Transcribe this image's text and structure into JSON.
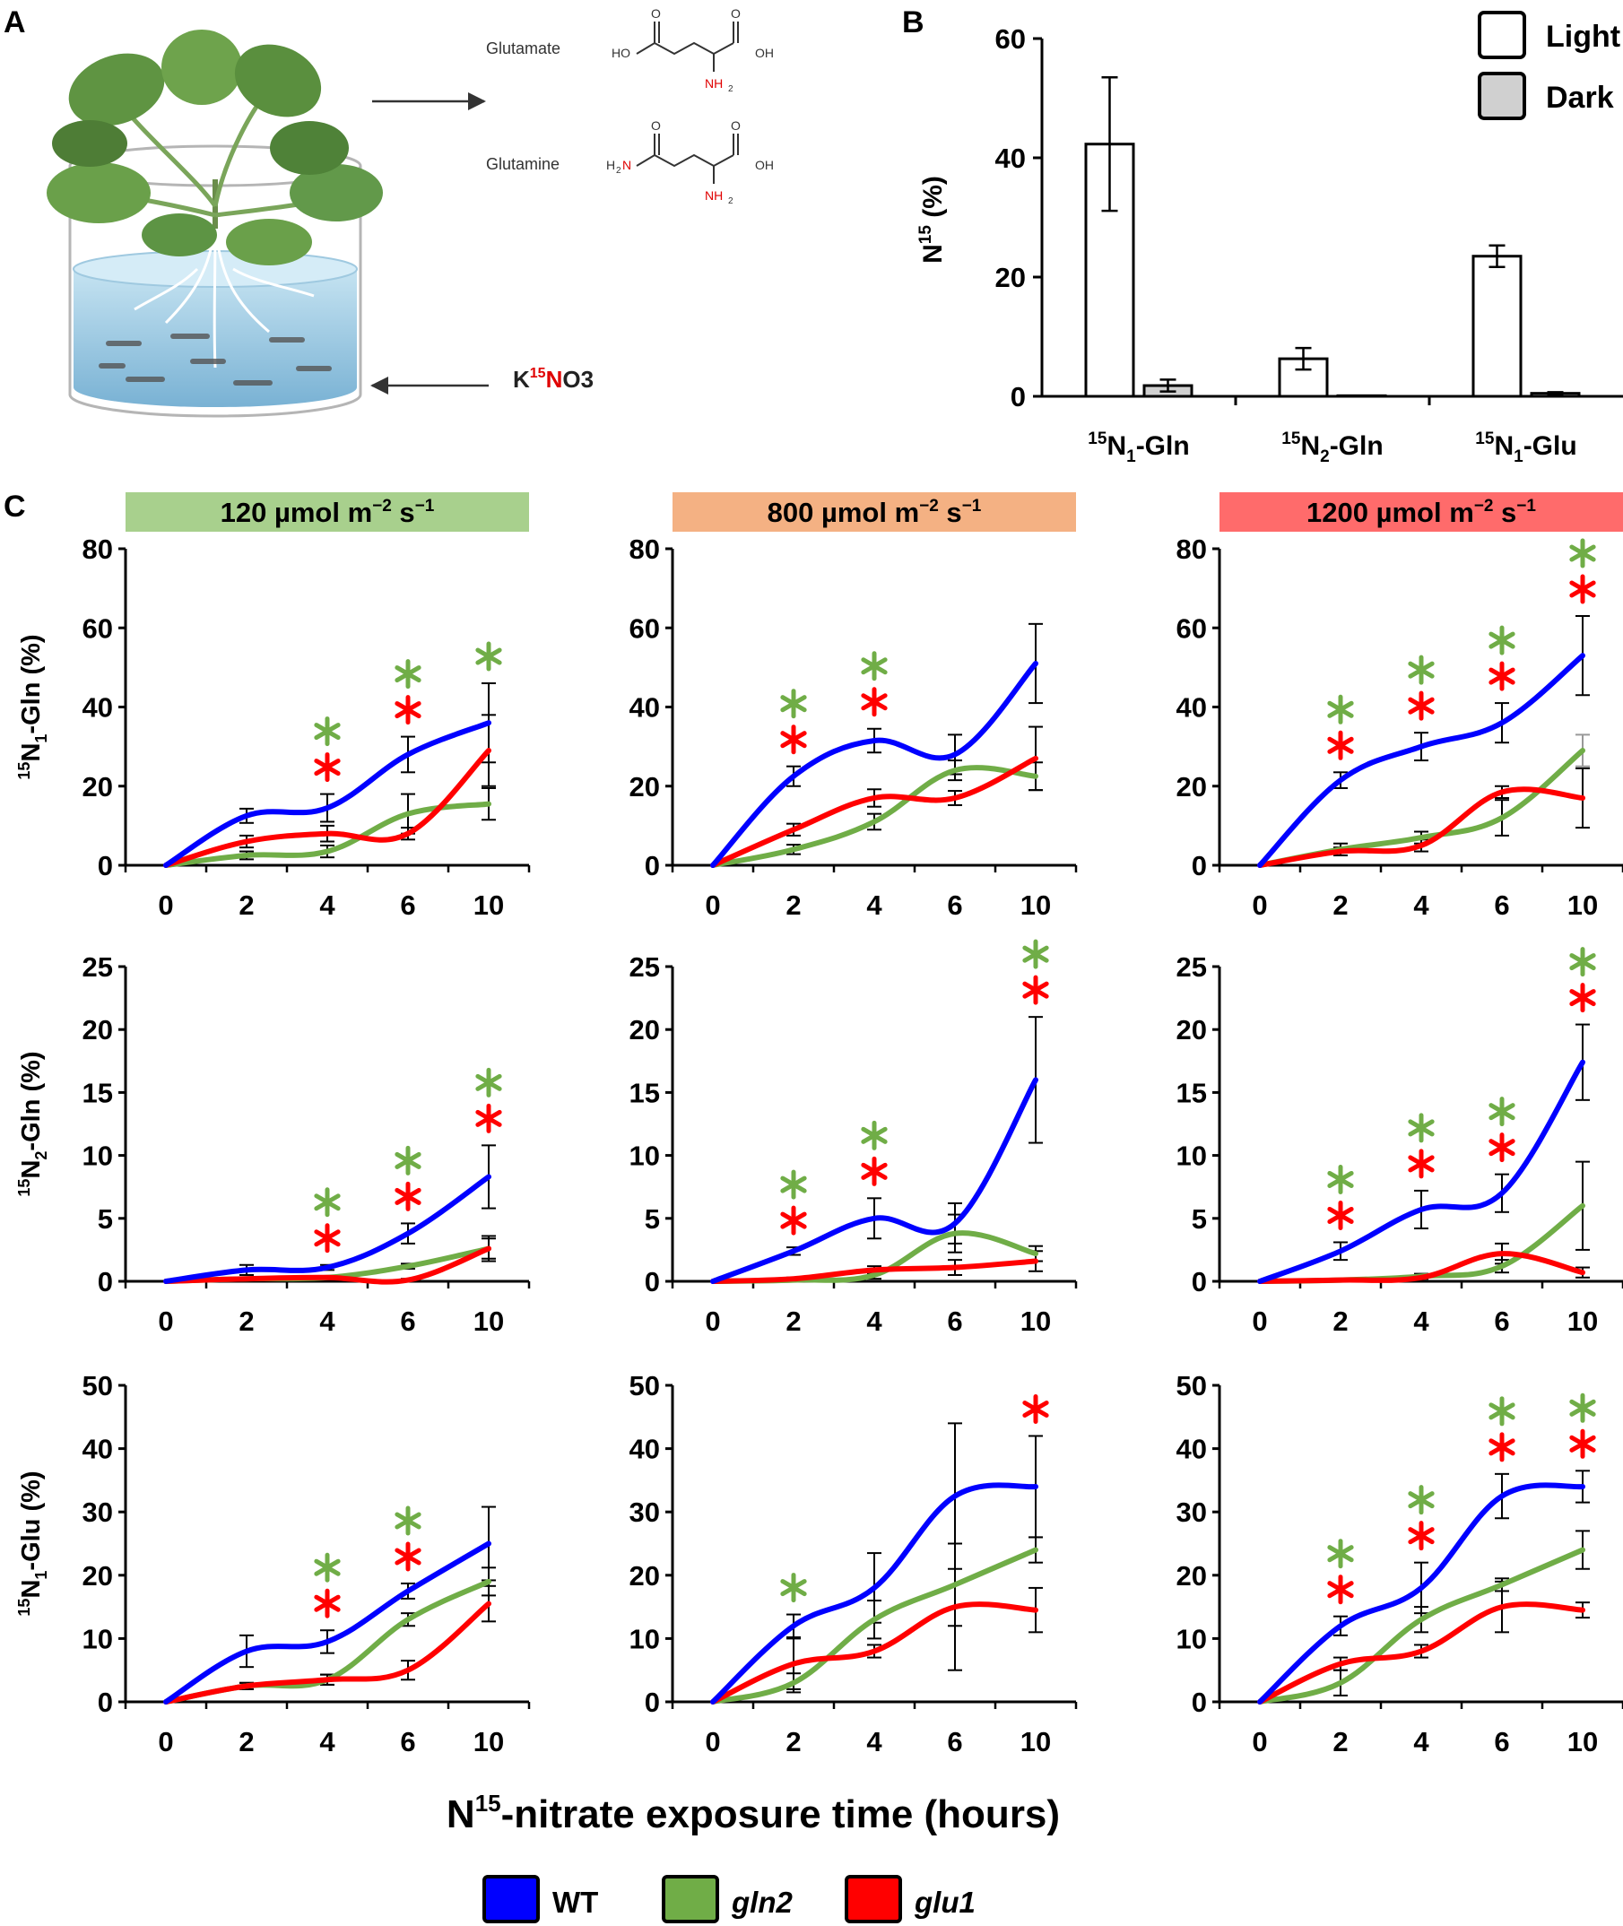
{
  "panel_letters": {
    "a": "A",
    "b": "B",
    "c": "C"
  },
  "panel_a": {
    "compounds": [
      "Glutamate",
      "Glutamine"
    ],
    "glutamate_atoms": {
      "ho": "HO",
      "oh": "OH",
      "o1": "O",
      "o2": "O",
      "n": "NH",
      "sub": "2"
    },
    "glutamine_atoms": {
      "h2n": "H",
      "h2n_sub": "2",
      "h2n_n": "N",
      "oh": "OH",
      "o1": "O",
      "o2": "O",
      "n": "NH",
      "sub": "2"
    },
    "nitrate_label": {
      "k": "K",
      "sup": "15",
      "n": "N",
      "rest": "O3"
    }
  },
  "chart_data": [
    {
      "id": "B",
      "type": "bar",
      "categories": [
        "¹⁵N₁-Gln",
        "¹⁵N₂-Gln",
        "¹⁵N₁-Glu"
      ],
      "category_parts": [
        {
          "sup": "15",
          "main": "N",
          "sub": "1",
          "rest": "-Gln"
        },
        {
          "sup": "15",
          "main": "N",
          "sub": "2",
          "rest": "-Gln"
        },
        {
          "sup": "15",
          "main": "N",
          "sub": "1",
          "rest": "-Glu"
        }
      ],
      "series": [
        {
          "name": "Light",
          "values": [
            42.3,
            6.3,
            23.5
          ],
          "errors": [
            11.2,
            1.8,
            1.8
          ],
          "color": "#ffffff"
        },
        {
          "name": "Dark",
          "values": [
            1.8,
            0.1,
            0.5
          ],
          "errors": [
            1.0,
            0.0,
            0.2
          ],
          "color": "#d0d0d0"
        }
      ],
      "ylabel": {
        "main": "N",
        "sup": "15",
        "rest": " (%)"
      },
      "ylim": [
        0,
        60
      ],
      "yticks": [
        0,
        20,
        40,
        60
      ],
      "legend_position": "top-right"
    },
    {
      "id": "C",
      "type": "line",
      "x": [
        0,
        2,
        4,
        6,
        10
      ],
      "x_tick_labels": [
        "0",
        "2",
        "4",
        "6",
        "10"
      ],
      "xlabel": {
        "main": "N",
        "sup": "15",
        "rest": "-nitrate exposure time (hours)"
      },
      "light_conditions": [
        {
          "label_main": "120 µmol m",
          "exp1": "−2",
          "mid": " s",
          "exp2": "−1",
          "color": "#a8d08d"
        },
        {
          "label_main": "800 µmol m",
          "exp1": "−2",
          "mid": " s",
          "exp2": "−1",
          "color": "#f4b183"
        },
        {
          "label_main": "1200 µmol m",
          "exp1": "−2",
          "mid": " s",
          "exp2": "−1",
          "color": "#ff6b6b"
        }
      ],
      "legend": [
        {
          "name": "WT",
          "color": "#0000ff",
          "italic": false
        },
        {
          "name": "gln2",
          "color": "#70ad47",
          "italic": true
        },
        {
          "name": "glu1",
          "color": "#ff0000",
          "italic": true
        }
      ],
      "rows": [
        {
          "ylabel": {
            "sup": "15",
            "main": "N",
            "sub": "1",
            "rest": "-Gln (%)"
          },
          "ylim": [
            0,
            80
          ],
          "yticks": [
            0,
            20,
            40,
            60,
            80
          ],
          "panels": [
            {
              "series": [
                {
                  "name": "WT",
                  "values": [
                    0,
                    12.5,
                    14.5,
                    28,
                    36
                  ],
                  "errors": [
                    0,
                    1.8,
                    3.5,
                    4.5,
                    10
                  ]
                },
                {
                  "name": "gln2",
                  "values": [
                    0,
                    2.5,
                    3.5,
                    13,
                    15.5
                  ],
                  "errors": [
                    0,
                    1,
                    1.5,
                    5,
                    4
                  ]
                },
                {
                  "name": "glu1",
                  "values": [
                    0,
                    6,
                    8,
                    8,
                    29
                  ],
                  "errors": [
                    0,
                    1.5,
                    2,
                    1.5,
                    9
                  ]
                }
              ],
              "stars": [
                {
                  "x": 4,
                  "green": true,
                  "red": true
                },
                {
                  "x": 6,
                  "green": true,
                  "red": true
                },
                {
                  "x": 10,
                  "green": true,
                  "red": false
                }
              ]
            },
            {
              "series": [
                {
                  "name": "WT",
                  "values": [
                    0,
                    22.5,
                    31.5,
                    28,
                    51
                  ],
                  "errors": [
                    0,
                    2.5,
                    3,
                    5,
                    10
                  ]
                },
                {
                  "name": "gln2",
                  "values": [
                    0,
                    4,
                    11,
                    24,
                    22.5
                  ],
                  "errors": [
                    0,
                    1.2,
                    2,
                    2.5,
                    3.5
                  ]
                },
                {
                  "name": "glu1",
                  "values": [
                    0,
                    9,
                    17,
                    17,
                    27
                  ],
                  "errors": [
                    0,
                    1.5,
                    2.2,
                    1.8,
                    8
                  ]
                }
              ],
              "stars": [
                {
                  "x": 2,
                  "green": true,
                  "red": true
                },
                {
                  "x": 4,
                  "green": true,
                  "red": true
                }
              ]
            },
            {
              "series": [
                {
                  "name": "WT",
                  "values": [
                    0,
                    21.5,
                    30,
                    36,
                    53
                  ],
                  "errors": [
                    0,
                    2,
                    3.5,
                    5,
                    10
                  ]
                },
                {
                  "name": "gln2",
                  "values": [
                    0,
                    4,
                    7,
                    12,
                    29
                  ],
                  "errors": [
                    0,
                    1.5,
                    1.5,
                    4.5,
                    4
                  ]
                },
                {
                  "name": "glu1",
                  "values": [
                    0,
                    3.5,
                    5,
                    18.5,
                    17
                  ],
                  "errors": [
                    0,
                    1,
                    1.5,
                    1.5,
                    7.5
                  ]
                }
              ],
              "stars": [
                {
                  "x": 2,
                  "green": true,
                  "red": true
                },
                {
                  "x": 4,
                  "green": true,
                  "red": true
                },
                {
                  "x": 6,
                  "green": true,
                  "red": true
                },
                {
                  "x": 10,
                  "green": true,
                  "red": true
                }
              ]
            }
          ]
        },
        {
          "ylabel": {
            "sup": "15",
            "main": "N",
            "sub": "2",
            "rest": "-Gln (%)"
          },
          "ylim": [
            0,
            25
          ],
          "yticks": [
            0,
            5,
            10,
            15,
            20,
            25
          ],
          "panels": [
            {
              "series": [
                {
                  "name": "WT",
                  "values": [
                    0,
                    0.9,
                    1.1,
                    3.8,
                    8.3
                  ],
                  "errors": [
                    0,
                    0.4,
                    0.2,
                    0.8,
                    2.5
                  ]
                },
                {
                  "name": "gln2",
                  "values": [
                    0,
                    0.2,
                    0.3,
                    1.2,
                    2.6
                  ],
                  "errors": [
                    0,
                    0.1,
                    0.1,
                    0.2,
                    1
                  ]
                },
                {
                  "name": "glu1",
                  "values": [
                    0,
                    0.2,
                    0.3,
                    0.1,
                    2.6
                  ],
                  "errors": [
                    0,
                    0.1,
                    0.1,
                    0.1,
                    0.8
                  ]
                }
              ],
              "stars": [
                {
                  "x": 4,
                  "green": true,
                  "red": true
                },
                {
                  "x": 6,
                  "green": true,
                  "red": true
                },
                {
                  "x": 10,
                  "green": true,
                  "red": true
                }
              ]
            },
            {
              "series": [
                {
                  "name": "WT",
                  "values": [
                    0,
                    2.4,
                    5,
                    4.6,
                    16
                  ],
                  "errors": [
                    0,
                    0.3,
                    1.6,
                    1.6,
                    5
                  ]
                },
                {
                  "name": "gln2",
                  "values": [
                    0,
                    0.1,
                    0.5,
                    3.8,
                    2.2
                  ],
                  "errors": [
                    0,
                    0.1,
                    0.3,
                    1.5,
                    0.6
                  ]
                },
                {
                  "name": "glu1",
                  "values": [
                    0,
                    0.2,
                    0.9,
                    1.1,
                    1.6
                  ],
                  "errors": [
                    0,
                    0.1,
                    0.3,
                    0.6,
                    0.8
                  ]
                }
              ],
              "stars": [
                {
                  "x": 2,
                  "green": true,
                  "red": true
                },
                {
                  "x": 4,
                  "green": true,
                  "red": true
                },
                {
                  "x": 10,
                  "green": true,
                  "red": true
                }
              ]
            },
            {
              "series": [
                {
                  "name": "WT",
                  "values": [
                    0,
                    2.4,
                    5.7,
                    7,
                    17.4
                  ],
                  "errors": [
                    0,
                    0.7,
                    1.5,
                    1.5,
                    3
                  ]
                },
                {
                  "name": "gln2",
                  "values": [
                    0,
                    0.1,
                    0.4,
                    1.2,
                    6
                  ],
                  "errors": [
                    0,
                    0.1,
                    0.2,
                    0.5,
                    3.5
                  ]
                },
                {
                  "name": "glu1",
                  "values": [
                    0,
                    0.1,
                    0.3,
                    2.2,
                    0.7
                  ],
                  "errors": [
                    0,
                    0.1,
                    0.1,
                    0.8,
                    0.4
                  ]
                }
              ],
              "stars": [
                {
                  "x": 2,
                  "green": true,
                  "red": true
                },
                {
                  "x": 4,
                  "green": true,
                  "red": true
                },
                {
                  "x": 6,
                  "green": true,
                  "red": true
                },
                {
                  "x": 10,
                  "green": true,
                  "red": true
                }
              ]
            }
          ]
        },
        {
          "ylabel": {
            "sup": "15",
            "main": "N",
            "sub": "1",
            "rest": "-Glu (%)"
          },
          "ylim": [
            0,
            50
          ],
          "yticks": [
            0,
            10,
            20,
            30,
            40,
            50
          ],
          "panels": [
            {
              "series": [
                {
                  "name": "WT",
                  "values": [
                    0,
                    8,
                    9.5,
                    17.5,
                    25
                  ],
                  "errors": [
                    0,
                    2.5,
                    1.8,
                    1.2,
                    5.8
                  ]
                },
                {
                  "name": "gln2",
                  "values": [
                    0,
                    2.5,
                    3.5,
                    13,
                    19
                  ],
                  "errors": [
                    0,
                    0.5,
                    0.8,
                    1,
                    2.2
                  ]
                },
                {
                  "name": "glu1",
                  "values": [
                    0,
                    2.5,
                    3.5,
                    5,
                    15.5
                  ],
                  "errors": [
                    0,
                    0.5,
                    0.8,
                    1.5,
                    2.8
                  ]
                }
              ],
              "stars": [
                {
                  "x": 4,
                  "green": true,
                  "red": true
                },
                {
                  "x": 6,
                  "green": true,
                  "red": true
                }
              ]
            },
            {
              "series": [
                {
                  "name": "WT",
                  "values": [
                    0,
                    12,
                    18,
                    32.5,
                    34
                  ],
                  "errors": [
                    0,
                    1.8,
                    5.5,
                    11.5,
                    8
                  ]
                },
                {
                  "name": "gln2",
                  "values": [
                    0,
                    3,
                    13,
                    18.5,
                    24
                  ],
                  "errors": [
                    0,
                    1.5,
                    3,
                    6.5,
                    2
                  ]
                },
                {
                  "name": "glu1",
                  "values": [
                    0,
                    6,
                    8,
                    15,
                    14.5
                  ],
                  "errors": [
                    0,
                    4,
                    1,
                    10,
                    3.5
                  ]
                }
              ],
              "stars": [
                {
                  "x": 2,
                  "green": true,
                  "red": false
                },
                {
                  "x": 10,
                  "green": false,
                  "red": true
                }
              ]
            },
            {
              "series": [
                {
                  "name": "WT",
                  "values": [
                    0,
                    12,
                    18,
                    32.5,
                    34
                  ],
                  "errors": [
                    0,
                    1.5,
                    4,
                    3.5,
                    2.5
                  ]
                },
                {
                  "name": "gln2",
                  "values": [
                    0,
                    3,
                    13,
                    18.5,
                    24
                  ],
                  "errors": [
                    0,
                    2,
                    2,
                    1,
                    3
                  ]
                },
                {
                  "name": "glu1",
                  "values": [
                    0,
                    6,
                    8,
                    15,
                    14.5
                  ],
                  "errors": [
                    0,
                    1,
                    1,
                    4,
                    1.2
                  ]
                }
              ],
              "stars": [
                {
                  "x": 2,
                  "green": true,
                  "red": true
                },
                {
                  "x": 4,
                  "green": true,
                  "red": true
                },
                {
                  "x": 6,
                  "green": true,
                  "red": true
                },
                {
                  "x": 10,
                  "green": true,
                  "red": true
                }
              ]
            }
          ]
        }
      ]
    }
  ]
}
